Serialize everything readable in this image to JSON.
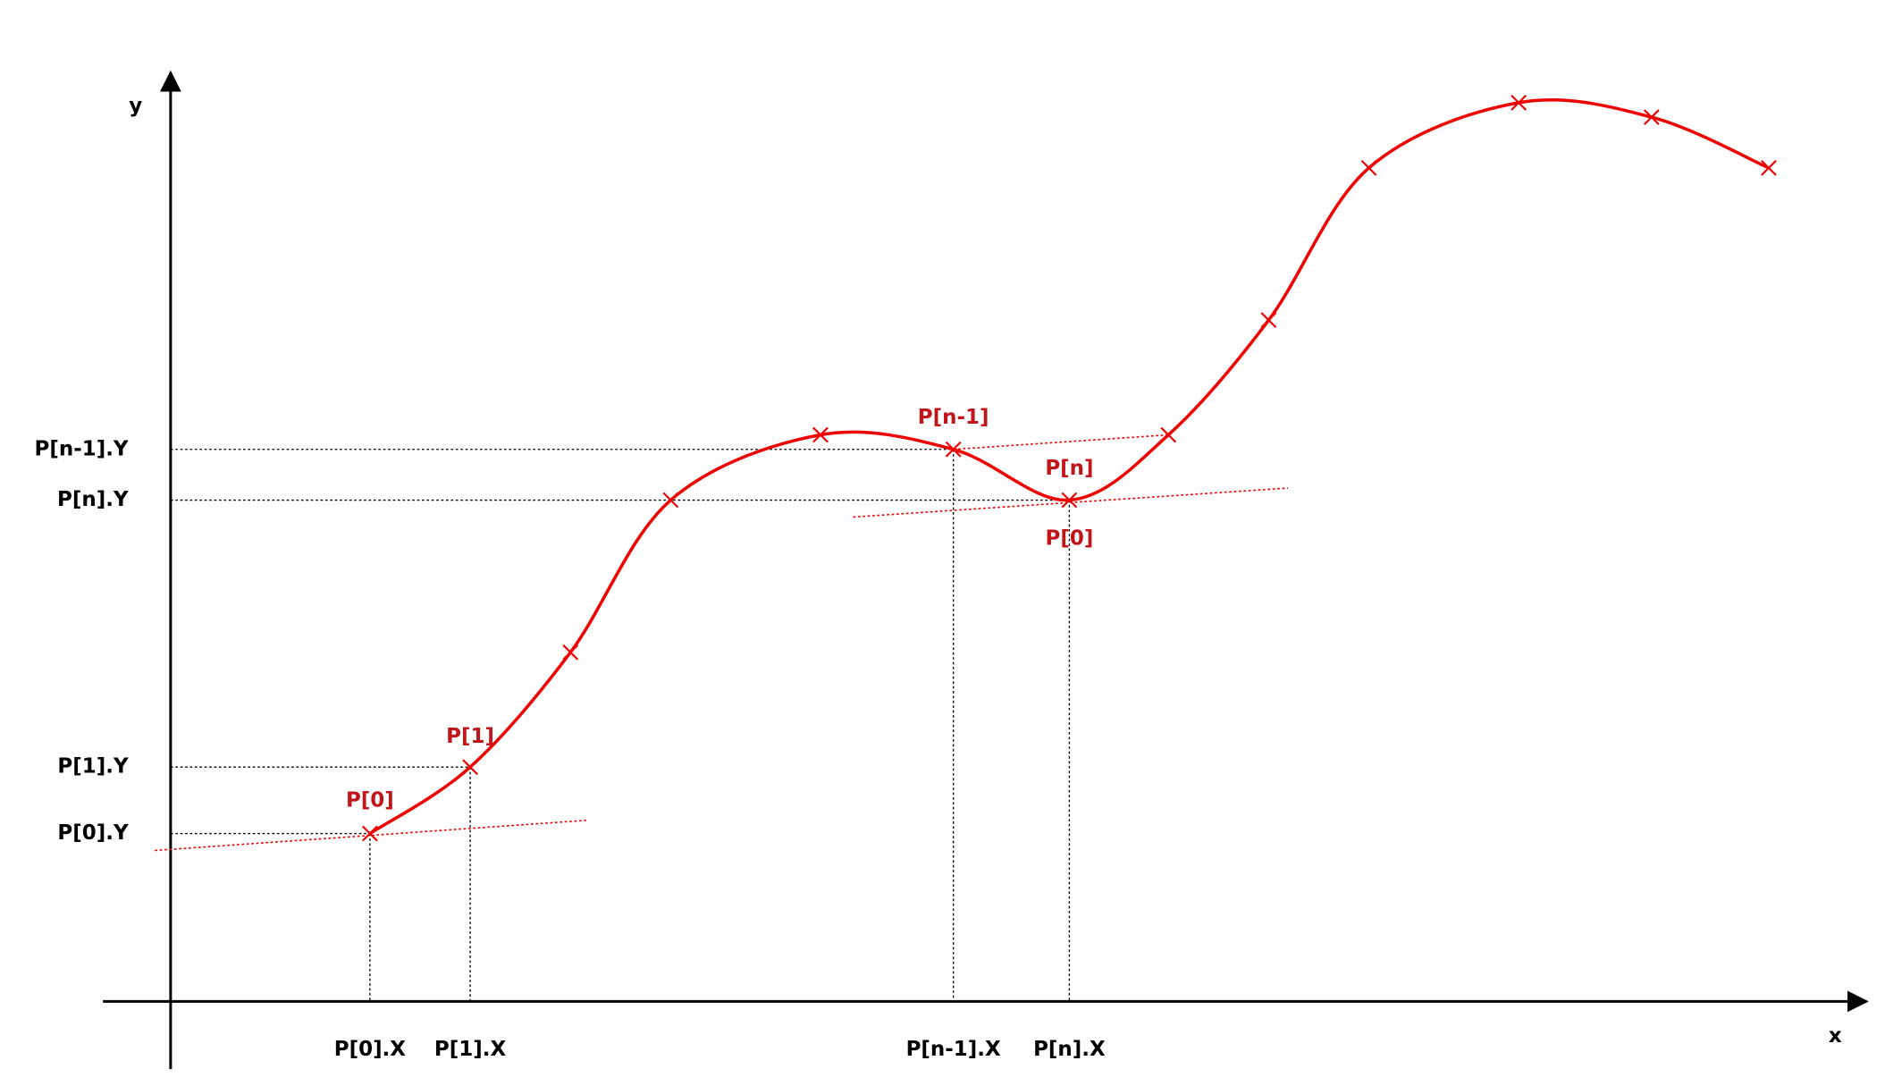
{
  "axes": {
    "x_label": "x",
    "y_label": "y"
  },
  "y_labels": [
    "P[n-1].Y",
    "P[n].Y",
    "P[1].Y",
    "P[0].Y"
  ],
  "x_labels": [
    "P[0].X",
    "P[1].X",
    "P[n-1].X",
    "P[n].X"
  ],
  "point_labels": [
    "P[0]",
    "P[1]",
    "P[n-1]",
    "P[n]",
    "P[0]"
  ]
}
